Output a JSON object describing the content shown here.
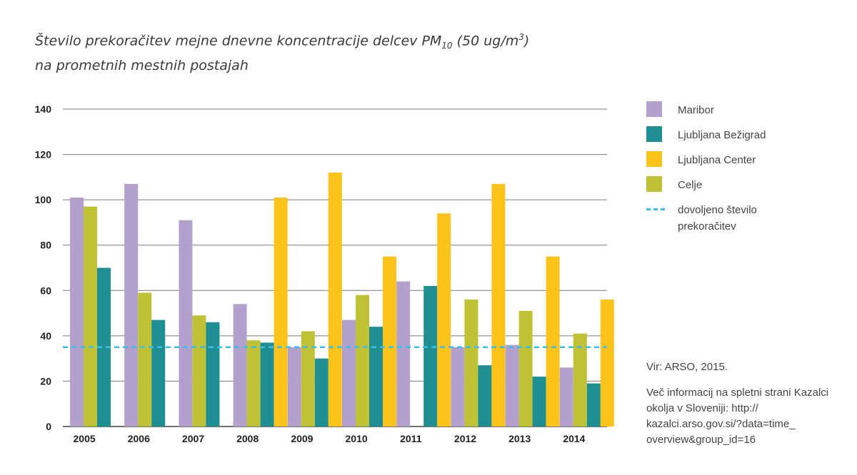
{
  "title": {
    "line1_prefix": "Število prekoračitev mejne dnevne koncentracije delcev PM",
    "line1_sub": "10",
    "line1_mid": " (50 ug/m",
    "line1_sup": "3",
    "line1_end": ")",
    "line2": "na prometnih mestnih postajah"
  },
  "legend": [
    {
      "label": "Maribor",
      "color": "#b4a0cc"
    },
    {
      "label": "Ljubljana Bežigrad",
      "color": "#1f8f94"
    },
    {
      "label": "Ljubljana Center",
      "color": "#fcc31b"
    },
    {
      "label": "Celje",
      "color": "#bfc234"
    },
    {
      "label": "dovoljeno število prekoračitev",
      "color": "#3bbde8"
    }
  ],
  "notes": {
    "source": "Vir: ARSO, 2015.",
    "more_info": "Več informacij na spletni strani Kazalci okolja v Sloveniji: http:// kazalci.arso.gov.si/?data=time_ overview&group_id=16"
  },
  "chart_data": {
    "type": "bar",
    "categories": [
      "2005",
      "2006",
      "2007",
      "2008",
      "2009",
      "2010",
      "2011",
      "2012",
      "2013",
      "2014"
    ],
    "series": [
      {
        "name": "Maribor",
        "color": "#b4a0cc",
        "values": [
          101,
          107,
          91,
          54,
          35,
          47,
          64,
          35,
          36,
          26
        ]
      },
      {
        "name": "Celje",
        "color": "#bfc234",
        "values": [
          97,
          59,
          49,
          38,
          42,
          58,
          null,
          56,
          51,
          41
        ]
      },
      {
        "name": "Ljubljana Bežigrad",
        "color": "#1f8f94",
        "values": [
          70,
          47,
          46,
          37,
          30,
          44,
          62,
          27,
          22,
          19
        ]
      },
      {
        "name": "Ljubljana Center",
        "color": "#fcc31b",
        "values": [
          null,
          null,
          null,
          101,
          112,
          75,
          94,
          107,
          75,
          56
        ]
      }
    ],
    "reference_line": {
      "name": "dovoljeno število prekoračitev",
      "value": 35,
      "color": "#3bbde8"
    },
    "ylim": [
      0,
      140
    ],
    "yticks": [
      0,
      20,
      40,
      60,
      80,
      100,
      120,
      140
    ],
    "grid": true,
    "legend_position": "right"
  }
}
